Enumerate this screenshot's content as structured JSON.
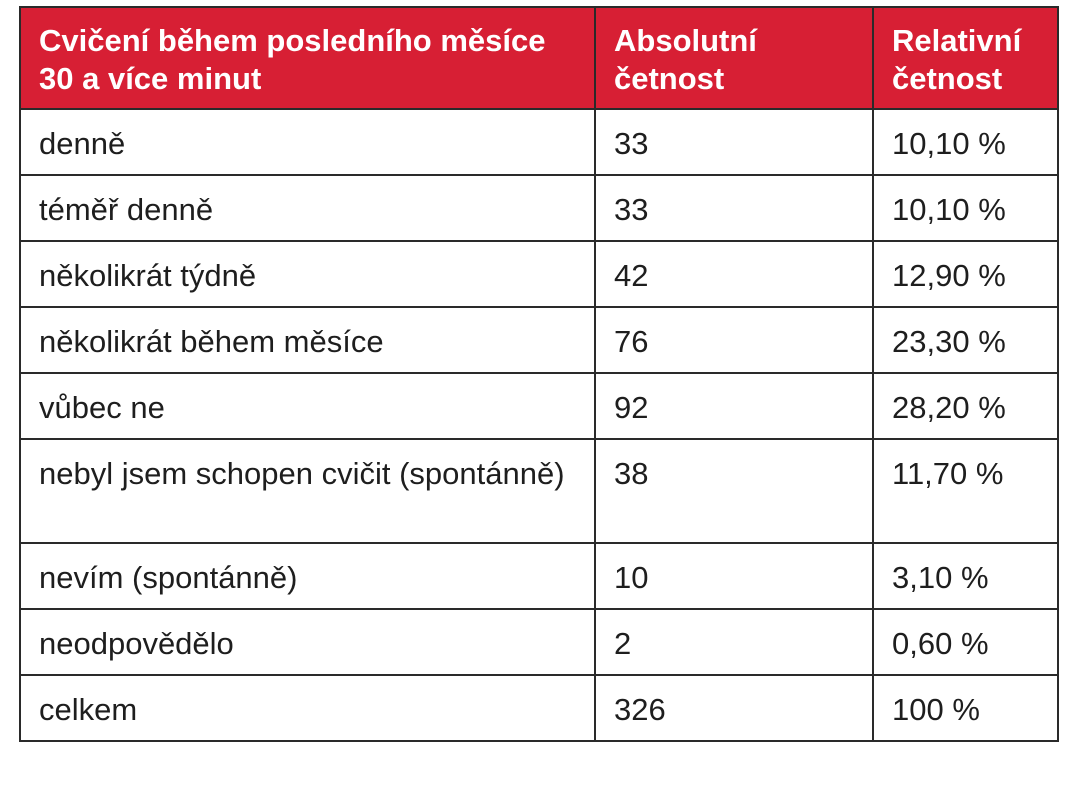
{
  "table": {
    "headers": [
      "Cvičení během posledního měsíce 30 a více minut",
      "Absolutní četnost",
      "Relativní četnost"
    ],
    "rows": [
      [
        "denně",
        "33",
        "10,10 %"
      ],
      [
        "téměř denně",
        "33",
        "10,10 %"
      ],
      [
        "několikrát týdně",
        "42",
        "12,90 %"
      ],
      [
        "několikrát během měsíce",
        "76",
        "23,30 %"
      ],
      [
        "vůbec ne",
        "92",
        "28,20 %"
      ],
      [
        "nebyl jsem schopen cvičit (spontánně)",
        "38",
        "11,70 %"
      ],
      [
        "nevím (spontánně)",
        "10",
        "3,10 %"
      ],
      [
        "neodpovědělo",
        "2",
        "0,60 %"
      ],
      [
        "celkem",
        "326",
        "100 %"
      ]
    ],
    "colors": {
      "header_background": "#d71f34",
      "header_text": "#ffffff",
      "border": "#2a2a2a"
    }
  }
}
